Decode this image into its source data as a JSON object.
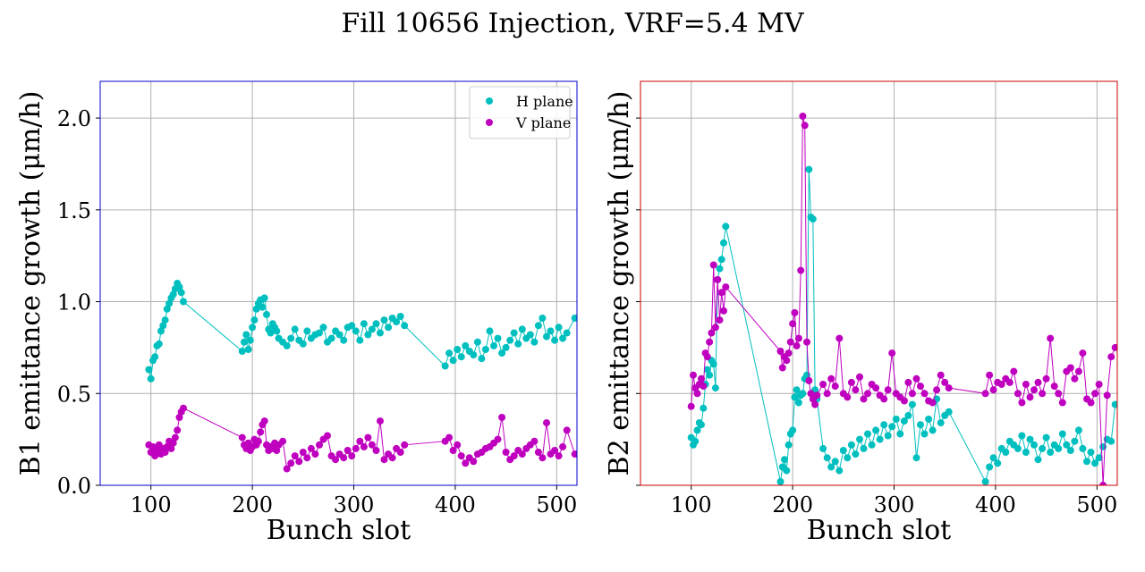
{
  "figure": {
    "suptitle": "Fill 10656 Injection, VRF=5.4 MV"
  },
  "chart_data": [
    {
      "type": "scatter",
      "panel": "B1",
      "frame_color": "#0000cc",
      "xlabel": "Bunch slot",
      "ylabel": "B1 emittance growth (μm/h)",
      "xlim": [
        50,
        520
      ],
      "ylim": [
        0.0,
        2.2
      ],
      "xticks": [
        "100",
        "200",
        "300",
        "400",
        "500"
      ],
      "yticks": [
        "0.0",
        "0.5",
        "1.0",
        "1.5",
        "2.0"
      ],
      "grid": true,
      "legend": {
        "position": "top-right",
        "entries": [
          "H plane",
          "V plane"
        ]
      },
      "series": [
        {
          "name": "H plane",
          "color": "#00bfbf",
          "x": [
            98,
            100,
            102,
            104,
            106,
            108,
            110,
            112,
            114,
            116,
            118,
            120,
            122,
            124,
            126,
            128,
            130,
            132,
            190,
            192,
            194,
            196,
            198,
            200,
            202,
            204,
            206,
            208,
            210,
            212,
            214,
            216,
            218,
            220,
            222,
            224,
            226,
            230,
            234,
            238,
            242,
            246,
            250,
            254,
            258,
            262,
            266,
            270,
            274,
            278,
            282,
            286,
            290,
            294,
            298,
            302,
            306,
            310,
            314,
            318,
            322,
            326,
            330,
            334,
            338,
            342,
            346,
            350,
            390,
            394,
            398,
            402,
            406,
            410,
            414,
            418,
            422,
            426,
            430,
            434,
            438,
            442,
            446,
            450,
            454,
            458,
            462,
            466,
            470,
            474,
            478,
            482,
            486,
            490,
            494,
            498,
            502,
            506,
            510,
            518
          ],
          "y": [
            0.63,
            0.58,
            0.68,
            0.7,
            0.76,
            0.77,
            0.84,
            0.87,
            0.9,
            0.96,
            0.99,
            1.02,
            1.04,
            1.07,
            1.1,
            1.08,
            1.05,
            1.0,
            0.73,
            0.78,
            0.82,
            0.74,
            0.79,
            0.86,
            0.9,
            0.96,
            0.99,
            1.01,
            0.97,
            1.02,
            0.93,
            0.85,
            0.83,
            0.88,
            0.86,
            0.84,
            0.8,
            0.78,
            0.76,
            0.8,
            0.85,
            0.79,
            0.77,
            0.84,
            0.8,
            0.82,
            0.83,
            0.86,
            0.78,
            0.8,
            0.84,
            0.82,
            0.79,
            0.86,
            0.87,
            0.84,
            0.79,
            0.88,
            0.82,
            0.85,
            0.88,
            0.83,
            0.9,
            0.86,
            0.91,
            0.89,
            0.92,
            0.87,
            0.65,
            0.72,
            0.68,
            0.74,
            0.7,
            0.76,
            0.73,
            0.71,
            0.78,
            0.69,
            0.74,
            0.84,
            0.76,
            0.8,
            0.72,
            0.75,
            0.79,
            0.83,
            0.77,
            0.85,
            0.8,
            0.82,
            0.78,
            0.87,
            0.91,
            0.81,
            0.84,
            0.79,
            0.86,
            0.8,
            0.83,
            0.91
          ]
        },
        {
          "name": "V plane",
          "color": "#bf00bf",
          "x": [
            98,
            100,
            102,
            104,
            106,
            108,
            110,
            112,
            114,
            116,
            118,
            120,
            122,
            124,
            126,
            128,
            130,
            132,
            190,
            192,
            194,
            196,
            198,
            200,
            202,
            204,
            206,
            208,
            210,
            212,
            214,
            216,
            218,
            220,
            222,
            224,
            226,
            230,
            234,
            238,
            242,
            246,
            250,
            254,
            258,
            262,
            266,
            270,
            274,
            278,
            282,
            286,
            290,
            294,
            298,
            302,
            306,
            310,
            314,
            318,
            322,
            326,
            330,
            334,
            338,
            342,
            346,
            350,
            390,
            394,
            398,
            402,
            406,
            410,
            414,
            418,
            422,
            426,
            430,
            434,
            438,
            442,
            446,
            450,
            454,
            458,
            462,
            466,
            470,
            474,
            478,
            482,
            486,
            490,
            494,
            498,
            502,
            506,
            510,
            518
          ],
          "y": [
            0.22,
            0.18,
            0.21,
            0.16,
            0.19,
            0.22,
            0.17,
            0.2,
            0.18,
            0.21,
            0.24,
            0.2,
            0.23,
            0.26,
            0.3,
            0.37,
            0.4,
            0.42,
            0.26,
            0.22,
            0.2,
            0.23,
            0.19,
            0.21,
            0.25,
            0.22,
            0.24,
            0.29,
            0.33,
            0.35,
            0.22,
            0.19,
            0.21,
            0.2,
            0.23,
            0.19,
            0.22,
            0.24,
            0.09,
            0.12,
            0.16,
            0.13,
            0.18,
            0.15,
            0.2,
            0.17,
            0.22,
            0.25,
            0.27,
            0.16,
            0.14,
            0.17,
            0.15,
            0.19,
            0.16,
            0.2,
            0.24,
            0.21,
            0.26,
            0.22,
            0.19,
            0.35,
            0.14,
            0.17,
            0.15,
            0.2,
            0.18,
            0.22,
            0.24,
            0.26,
            0.19,
            0.22,
            0.16,
            0.12,
            0.15,
            0.13,
            0.17,
            0.18,
            0.2,
            0.21,
            0.23,
            0.25,
            0.37,
            0.18,
            0.14,
            0.16,
            0.19,
            0.17,
            0.2,
            0.22,
            0.24,
            0.18,
            0.15,
            0.34,
            0.17,
            0.19,
            0.16,
            0.21,
            0.3,
            0.17
          ]
        }
      ]
    },
    {
      "type": "scatter",
      "panel": "B2",
      "frame_color": "#cc0000",
      "xlabel": "Bunch slot",
      "ylabel": "B2 emittance growth (μm/h)",
      "xlim": [
        50,
        520
      ],
      "ylim": [
        0.0,
        2.2
      ],
      "xticks": [
        "100",
        "200",
        "300",
        "400",
        "500"
      ],
      "yticks": [],
      "grid": true,
      "series": [
        {
          "name": "H plane",
          "color": "#00bfbf",
          "x": [
            100,
            102,
            104,
            106,
            108,
            110,
            112,
            114,
            116,
            118,
            120,
            122,
            124,
            126,
            128,
            130,
            132,
            134,
            188,
            190,
            192,
            194,
            196,
            198,
            200,
            202,
            204,
            206,
            208,
            210,
            212,
            214,
            216,
            218,
            220,
            222,
            224,
            230,
            234,
            238,
            242,
            246,
            250,
            254,
            258,
            262,
            266,
            270,
            274,
            278,
            282,
            286,
            290,
            294,
            298,
            302,
            306,
            310,
            314,
            318,
            322,
            326,
            330,
            334,
            338,
            342,
            346,
            350,
            354,
            390,
            394,
            398,
            402,
            406,
            410,
            414,
            418,
            422,
            426,
            430,
            434,
            438,
            442,
            446,
            450,
            454,
            458,
            462,
            466,
            470,
            474,
            478,
            482,
            486,
            490,
            494,
            498,
            502,
            506,
            510,
            514,
            518
          ],
          "y": [
            0.26,
            0.22,
            0.24,
            0.3,
            0.34,
            0.33,
            0.42,
            0.55,
            0.63,
            0.6,
            0.68,
            0.66,
            0.53,
            1.12,
            1.18,
            1.23,
            1.32,
            1.41,
            0.02,
            0.1,
            0.14,
            0.08,
            0.22,
            0.28,
            0.3,
            0.48,
            0.52,
            0.45,
            0.49,
            0.5,
            0.58,
            0.6,
            1.72,
            1.46,
            1.45,
            0.52,
            0.47,
            0.2,
            0.15,
            0.1,
            0.13,
            0.08,
            0.19,
            0.15,
            0.22,
            0.17,
            0.25,
            0.2,
            0.28,
            0.22,
            0.3,
            0.25,
            0.33,
            0.27,
            0.32,
            0.36,
            0.28,
            0.35,
            0.38,
            0.44,
            0.15,
            0.33,
            0.28,
            0.36,
            0.3,
            0.47,
            0.34,
            0.38,
            0.4,
            0.02,
            0.1,
            0.15,
            0.12,
            0.2,
            0.18,
            0.24,
            0.22,
            0.2,
            0.27,
            0.18,
            0.25,
            0.22,
            0.14,
            0.2,
            0.26,
            0.18,
            0.22,
            0.2,
            0.28,
            0.22,
            0.19,
            0.24,
            0.3,
            0.2,
            0.13,
            0.18,
            0.12,
            0.15,
            0.21,
            0.25,
            0.24,
            0.44
          ]
        },
        {
          "name": "V plane",
          "color": "#bf00bf",
          "x": [
            100,
            102,
            104,
            106,
            108,
            110,
            112,
            114,
            116,
            118,
            120,
            122,
            124,
            126,
            128,
            130,
            132,
            134,
            188,
            190,
            192,
            194,
            196,
            198,
            200,
            202,
            204,
            206,
            208,
            210,
            212,
            214,
            216,
            218,
            220,
            222,
            224,
            230,
            234,
            238,
            242,
            246,
            250,
            254,
            258,
            262,
            266,
            270,
            274,
            278,
            282,
            286,
            290,
            294,
            298,
            302,
            306,
            310,
            314,
            318,
            322,
            326,
            330,
            334,
            338,
            342,
            346,
            350,
            354,
            390,
            394,
            398,
            402,
            406,
            410,
            414,
            418,
            422,
            426,
            430,
            434,
            438,
            442,
            446,
            450,
            454,
            458,
            462,
            466,
            470,
            474,
            478,
            482,
            486,
            490,
            494,
            498,
            502,
            506,
            510,
            514,
            518
          ],
          "y": [
            0.43,
            0.6,
            0.53,
            0.5,
            0.55,
            0.58,
            0.54,
            0.72,
            0.7,
            0.78,
            0.83,
            1.2,
            0.86,
            1.12,
            0.9,
            1.05,
            0.95,
            1.08,
            0.73,
            0.64,
            0.7,
            0.68,
            0.72,
            0.78,
            0.88,
            0.94,
            0.76,
            0.8,
            1.17,
            2.01,
            1.96,
            0.78,
            0.57,
            0.5,
            0.47,
            0.44,
            0.49,
            0.55,
            0.5,
            0.58,
            0.54,
            0.8,
            0.5,
            0.48,
            0.56,
            0.52,
            0.59,
            0.47,
            0.5,
            0.55,
            0.53,
            0.49,
            0.47,
            0.52,
            0.72,
            0.5,
            0.48,
            0.46,
            0.56,
            0.5,
            0.58,
            0.54,
            0.5,
            0.46,
            0.45,
            0.52,
            0.6,
            0.56,
            0.53,
            0.5,
            0.6,
            0.52,
            0.56,
            0.55,
            0.58,
            0.56,
            0.62,
            0.5,
            0.45,
            0.55,
            0.48,
            0.52,
            0.56,
            0.5,
            0.58,
            0.8,
            0.54,
            0.5,
            0.45,
            0.62,
            0.64,
            0.58,
            0.62,
            0.72,
            0.47,
            0.45,
            0.5,
            0.55,
            0.0,
            0.49,
            0.7,
            0.75
          ]
        }
      ]
    }
  ]
}
